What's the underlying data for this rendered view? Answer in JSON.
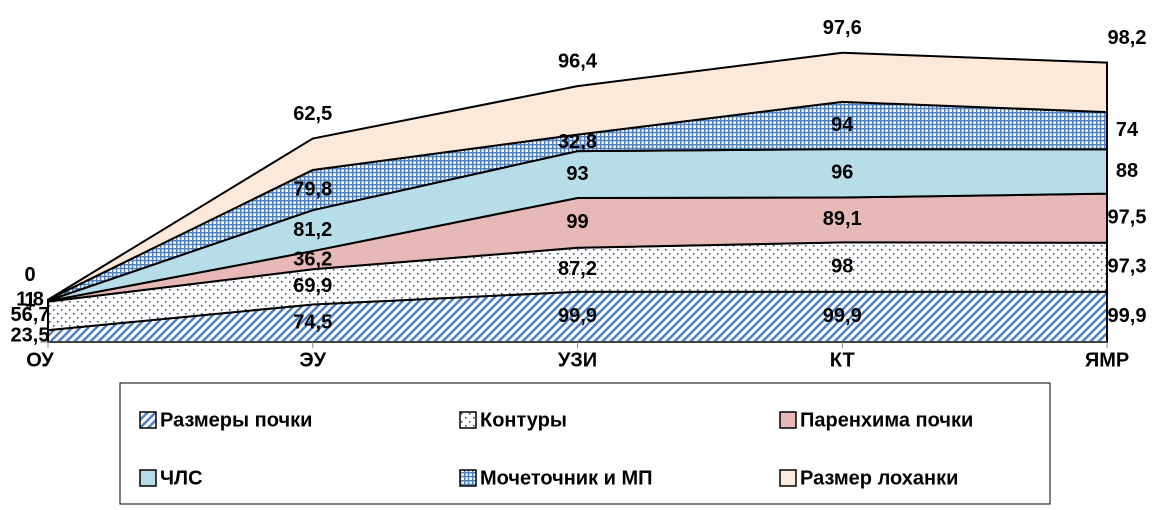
{
  "chart_data": {
    "type": "stacked_area",
    "categories": [
      "ОУ",
      "ЭУ",
      "УЗИ",
      "КТ",
      "ЯМР"
    ],
    "ylim": [
      0,
      580
    ],
    "series": [
      {
        "name": "Размеры почки",
        "color": "#4f81bd",
        "pattern": "diagonal",
        "values": [
          23.5,
          74.5,
          99.9,
          99.9,
          99.9
        ],
        "value_labels": [
          "23,5",
          "74,5",
          "99,9",
          "99,9",
          "99,9"
        ]
      },
      {
        "name": "Контуры",
        "color": "#1f3864",
        "pattern": "dots",
        "values": [
          56.7,
          69.9,
          87.2,
          98,
          97.3
        ],
        "value_labels": [
          "56,7",
          "69,9",
          "87,2",
          "98",
          "97,3"
        ]
      },
      {
        "name": "Паренхима почки",
        "color": "#e6b9b8",
        "values": [
          1,
          36.2,
          99,
          89.1,
          97.5
        ],
        "value_labels": [
          "1",
          "36,2",
          "99",
          "89,1",
          "97,5"
        ]
      },
      {
        "name": "ЧЛС",
        "color": "#b7dee8",
        "values": [
          1,
          81.2,
          93,
          96,
          88
        ],
        "value_labels": [
          "1",
          "81,2",
          "93",
          "96",
          "88"
        ]
      },
      {
        "name": "Мочеточник и МП",
        "color": "#4f81bd",
        "pattern": "grid",
        "values": [
          1.8,
          79.8,
          32.8,
          94,
          74
        ],
        "value_labels": [
          "1,8",
          "79,8",
          "32,8",
          "94",
          "74"
        ]
      },
      {
        "name": "Размер лоханки",
        "color": "#fde9d9",
        "values": [
          0,
          62.5,
          96.4,
          97.6,
          98.2
        ],
        "value_labels": [
          "0",
          "62,5",
          "96,4",
          "97,6",
          "98,2"
        ]
      }
    ]
  }
}
